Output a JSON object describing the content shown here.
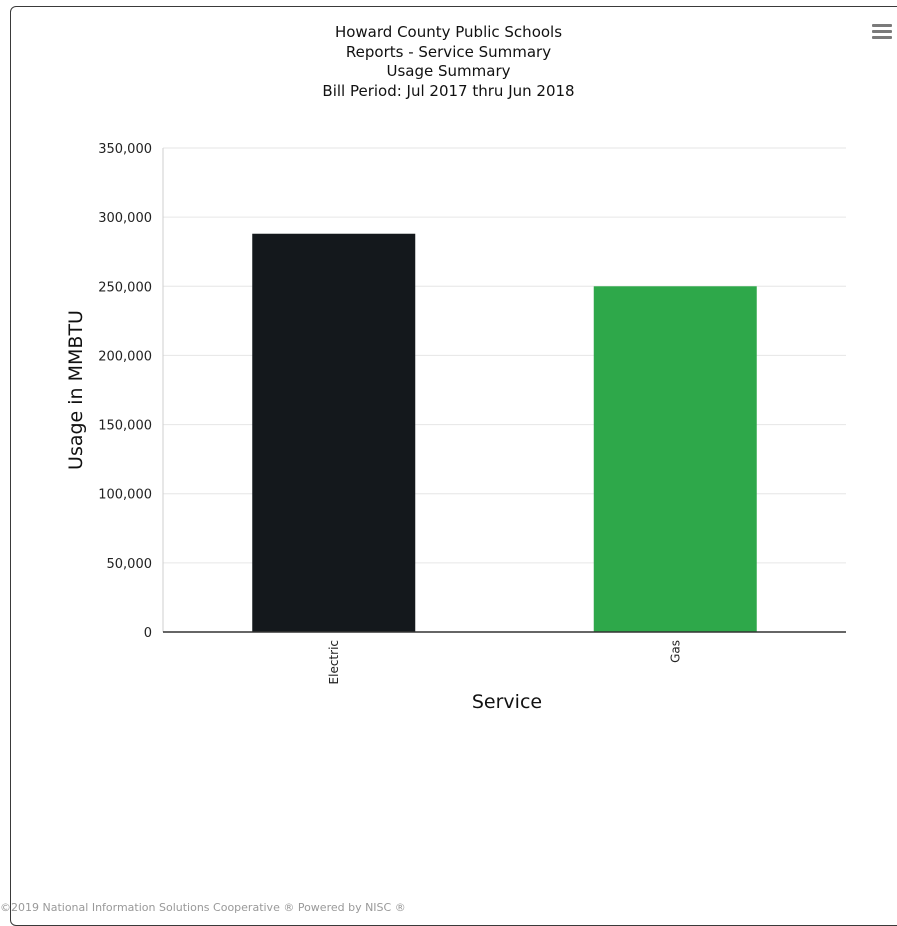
{
  "header": {
    "title_lines": [
      "Howard County Public Schools",
      "Reports - Service Summary",
      "Usage Summary",
      "Bill Period: Jul 2017 thru Jun 2018"
    ]
  },
  "menu": {
    "icon": "hamburger-menu-icon"
  },
  "chart_data": {
    "type": "bar",
    "title": "Howard County Public Schools",
    "subtitle": "Reports - Service Summary / Usage Summary / Bill Period: Jul 2017 thru Jun 2018",
    "xlabel": "Service",
    "ylabel": "Usage in MMBTU",
    "categories": [
      "Electric",
      "Gas"
    ],
    "values": [
      288000,
      250000
    ],
    "colors": [
      "#14181c",
      "#2ea84a"
    ],
    "ylim": [
      0,
      350000
    ],
    "yticks": [
      0,
      50000,
      100000,
      150000,
      200000,
      250000,
      300000,
      350000
    ],
    "ytick_labels": [
      "0",
      "50,000",
      "100,000",
      "150,000",
      "200,000",
      "250,000",
      "300,000",
      "350,000"
    ],
    "grid": true,
    "legend": "none"
  },
  "footer": {
    "credit": "©2019 National Information Solutions Cooperative ® Powered by NISC ®"
  }
}
